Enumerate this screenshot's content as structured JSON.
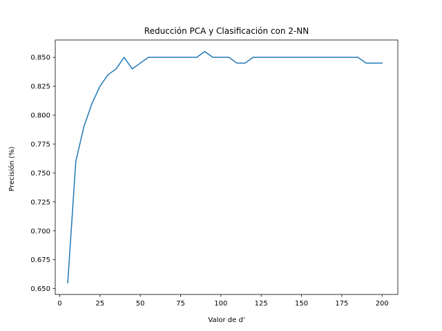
{
  "chart_data": {
    "type": "line",
    "title": "Reducción PCA y Clasificación con 2-NN",
    "xlabel": "Valor de d'",
    "ylabel": "Precisión (%)",
    "xlim": [
      -2.75,
      209.75
    ],
    "ylim": [
      0.645,
      0.865
    ],
    "xticks": [
      0,
      25,
      50,
      75,
      100,
      125,
      150,
      175,
      200
    ],
    "yticks": [
      0.65,
      0.675,
      0.7,
      0.725,
      0.75,
      0.775,
      0.8,
      0.825,
      0.85
    ],
    "xtick_labels": [
      "0",
      "25",
      "50",
      "75",
      "100",
      "125",
      "150",
      "175",
      "200"
    ],
    "ytick_labels": [
      "0.650",
      "0.675",
      "0.700",
      "0.725",
      "0.750",
      "0.775",
      "0.800",
      "0.825",
      "0.850"
    ],
    "grid": false,
    "legend": "none",
    "series": [
      {
        "color": "#1f77b4",
        "x": [
          5,
          10,
          15,
          20,
          25,
          30,
          35,
          40,
          45,
          50,
          55,
          60,
          65,
          70,
          75,
          80,
          85,
          90,
          95,
          100,
          105,
          110,
          115,
          120,
          125,
          130,
          135,
          140,
          145,
          150,
          155,
          160,
          165,
          170,
          175,
          180,
          185,
          190,
          195,
          200
        ],
        "y": [
          0.655,
          0.76,
          0.79,
          0.81,
          0.825,
          0.835,
          0.84,
          0.85,
          0.84,
          0.845,
          0.85,
          0.85,
          0.85,
          0.85,
          0.85,
          0.85,
          0.85,
          0.855,
          0.85,
          0.85,
          0.85,
          0.845,
          0.845,
          0.85,
          0.85,
          0.85,
          0.85,
          0.85,
          0.85,
          0.85,
          0.85,
          0.85,
          0.85,
          0.85,
          0.85,
          0.85,
          0.85,
          0.845,
          0.845,
          0.845
        ]
      }
    ]
  }
}
